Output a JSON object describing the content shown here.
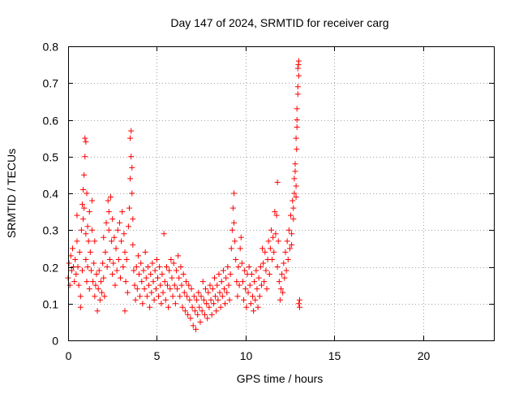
{
  "chart_data": {
    "type": "scatter",
    "title": "Day 147 of 2024, SRMTID for receiver carg",
    "xlabel": "GPS time / hours",
    "ylabel": "SRMTID / TECUs",
    "xlim": [
      0,
      24
    ],
    "ylim": [
      0,
      0.8
    ],
    "xticks": [
      0,
      5,
      10,
      15,
      20
    ],
    "yticks": [
      0,
      0.1,
      0.2,
      0.3,
      0.4,
      0.5,
      0.6,
      0.7,
      0.8
    ],
    "xtick_labels": [
      "0",
      "5",
      "10",
      "15",
      "20"
    ],
    "ytick_labels": [
      "0",
      "0.1",
      "0.2",
      "0.3",
      "0.4",
      "0.5",
      "0.6",
      "0.7",
      "0.8"
    ],
    "grid": true,
    "marker": "plus",
    "marker_color": "#ff0000",
    "series": [
      {
        "name": "SRMTID",
        "points": [
          [
            0.0,
            0.17
          ],
          [
            0.05,
            0.21
          ],
          [
            0.1,
            0.15
          ],
          [
            0.15,
            0.23
          ],
          [
            0.2,
            0.19
          ],
          [
            0.25,
            0.25
          ],
          [
            0.3,
            0.2
          ],
          [
            0.35,
            0.16
          ],
          [
            0.4,
            0.22
          ],
          [
            0.45,
            0.18
          ],
          [
            0.5,
            0.27
          ],
          [
            0.5,
            0.34
          ],
          [
            0.55,
            0.2
          ],
          [
            0.6,
            0.15
          ],
          [
            0.65,
            0.24
          ],
          [
            0.7,
            0.12
          ],
          [
            0.7,
            0.09
          ],
          [
            0.75,
            0.3
          ],
          [
            0.8,
            0.19
          ],
          [
            0.8,
            0.37
          ],
          [
            0.85,
            0.33
          ],
          [
            0.85,
            0.41
          ],
          [
            0.9,
            0.36
          ],
          [
            0.9,
            0.45
          ],
          [
            0.95,
            0.5
          ],
          [
            0.95,
            0.55
          ],
          [
            1.0,
            0.54
          ],
          [
            1.0,
            0.29
          ],
          [
            1.0,
            0.22
          ],
          [
            1.05,
            0.4
          ],
          [
            1.05,
            0.16
          ],
          [
            1.1,
            0.31
          ],
          [
            1.1,
            0.2
          ],
          [
            1.15,
            0.27
          ],
          [
            1.2,
            0.14
          ],
          [
            1.2,
            0.35
          ],
          [
            1.25,
            0.24
          ],
          [
            1.3,
            0.19
          ],
          [
            1.35,
            0.38
          ],
          [
            1.35,
            0.3
          ],
          [
            1.4,
            0.16
          ],
          [
            1.45,
            0.21
          ],
          [
            1.5,
            0.12
          ],
          [
            1.5,
            0.27
          ],
          [
            1.55,
            0.15
          ],
          [
            1.6,
            0.18
          ],
          [
            1.65,
            0.08
          ],
          [
            1.7,
            0.14
          ],
          [
            1.75,
            0.19
          ],
          [
            1.8,
            0.11
          ],
          [
            1.85,
            0.16
          ],
          [
            1.9,
            0.13
          ],
          [
            1.95,
            0.21
          ],
          [
            2.0,
            0.17
          ],
          [
            2.0,
            0.28
          ],
          [
            2.05,
            0.12
          ],
          [
            2.1,
            0.24
          ],
          [
            2.15,
            0.32
          ],
          [
            2.2,
            0.2
          ],
          [
            2.25,
            0.38
          ],
          [
            2.3,
            0.3
          ],
          [
            2.3,
            0.35
          ],
          [
            2.35,
            0.22
          ],
          [
            2.4,
            0.39
          ],
          [
            2.45,
            0.27
          ],
          [
            2.5,
            0.18
          ],
          [
            2.5,
            0.33
          ],
          [
            2.55,
            0.21
          ],
          [
            2.6,
            0.28
          ],
          [
            2.65,
            0.15
          ],
          [
            2.7,
            0.25
          ],
          [
            2.75,
            0.19
          ],
          [
            2.8,
            0.3
          ],
          [
            2.85,
            0.22
          ],
          [
            2.9,
            0.32
          ],
          [
            2.95,
            0.17
          ],
          [
            3.0,
            0.27
          ],
          [
            3.05,
            0.35
          ],
          [
            3.1,
            0.2
          ],
          [
            3.15,
            0.29
          ],
          [
            3.2,
            0.08
          ],
          [
            3.2,
            0.24
          ],
          [
            3.25,
            0.16
          ],
          [
            3.3,
            0.22
          ],
          [
            3.35,
            0.13
          ],
          [
            3.4,
            0.31
          ],
          [
            3.45,
            0.36
          ],
          [
            3.5,
            0.44
          ],
          [
            3.5,
            0.55
          ],
          [
            3.55,
            0.5
          ],
          [
            3.55,
            0.57
          ],
          [
            3.6,
            0.47
          ],
          [
            3.6,
            0.4
          ],
          [
            3.65,
            0.33
          ],
          [
            3.65,
            0.26
          ],
          [
            3.7,
            0.19
          ],
          [
            3.75,
            0.15
          ],
          [
            3.8,
            0.11
          ],
          [
            3.85,
            0.2
          ],
          [
            3.9,
            0.14
          ],
          [
            3.95,
            0.23
          ],
          [
            4.0,
            0.18
          ],
          [
            4.05,
            0.12
          ],
          [
            4.1,
            0.21
          ],
          [
            4.15,
            0.16
          ],
          [
            4.2,
            0.1
          ],
          [
            4.25,
            0.19
          ],
          [
            4.3,
            0.14
          ],
          [
            4.35,
            0.24
          ],
          [
            4.4,
            0.17
          ],
          [
            4.45,
            0.12
          ],
          [
            4.5,
            0.2
          ],
          [
            4.55,
            0.15
          ],
          [
            4.6,
            0.09
          ],
          [
            4.65,
            0.18
          ],
          [
            4.7,
            0.13
          ],
          [
            4.75,
            0.21
          ],
          [
            4.8,
            0.16
          ],
          [
            4.85,
            0.11
          ],
          [
            4.9,
            0.19
          ],
          [
            4.95,
            0.14
          ],
          [
            5.0,
            0.22
          ],
          [
            5.05,
            0.17
          ],
          [
            5.1,
            0.12
          ],
          [
            5.15,
            0.2
          ],
          [
            5.2,
            0.15
          ],
          [
            5.25,
            0.1
          ],
          [
            5.3,
            0.18
          ],
          [
            5.35,
            0.13
          ],
          [
            5.4,
            0.29
          ],
          [
            5.45,
            0.16
          ],
          [
            5.5,
            0.11
          ],
          [
            5.55,
            0.2
          ],
          [
            5.6,
            0.15
          ],
          [
            5.65,
            0.09
          ],
          [
            5.7,
            0.19
          ],
          [
            5.75,
            0.14
          ],
          [
            5.8,
            0.22
          ],
          [
            5.85,
            0.17
          ],
          [
            5.9,
            0.12
          ],
          [
            5.95,
            0.21
          ],
          [
            6.0,
            0.15
          ],
          [
            6.05,
            0.1
          ],
          [
            6.1,
            0.19
          ],
          [
            6.15,
            0.14
          ],
          [
            6.2,
            0.23
          ],
          [
            6.25,
            0.17
          ],
          [
            6.3,
            0.12
          ],
          [
            6.35,
            0.2
          ],
          [
            6.4,
            0.15
          ],
          [
            6.45,
            0.09
          ],
          [
            6.5,
            0.18
          ],
          [
            6.55,
            0.13
          ],
          [
            6.6,
            0.08
          ],
          [
            6.65,
            0.16
          ],
          [
            6.7,
            0.12
          ],
          [
            6.75,
            0.07
          ],
          [
            6.8,
            0.15
          ],
          [
            6.85,
            0.11
          ],
          [
            6.9,
            0.06
          ],
          [
            6.95,
            0.14
          ],
          [
            7.0,
            0.09
          ],
          [
            7.05,
            0.04
          ],
          [
            7.1,
            0.12
          ],
          [
            7.15,
            0.08
          ],
          [
            7.2,
            0.03
          ],
          [
            7.25,
            0.11
          ],
          [
            7.3,
            0.07
          ],
          [
            7.35,
            0.13
          ],
          [
            7.4,
            0.09
          ],
          [
            7.45,
            0.05
          ],
          [
            7.5,
            0.12
          ],
          [
            7.55,
            0.08
          ],
          [
            7.6,
            0.16
          ],
          [
            7.65,
            0.11
          ],
          [
            7.7,
            0.07
          ],
          [
            7.75,
            0.14
          ],
          [
            7.8,
            0.1
          ],
          [
            7.85,
            0.06
          ],
          [
            7.9,
            0.13
          ],
          [
            7.95,
            0.09
          ],
          [
            8.0,
            0.15
          ],
          [
            8.05,
            0.11
          ],
          [
            8.1,
            0.07
          ],
          [
            8.15,
            0.14
          ],
          [
            8.2,
            0.1
          ],
          [
            8.25,
            0.17
          ],
          [
            8.3,
            0.12
          ],
          [
            8.35,
            0.08
          ],
          [
            8.4,
            0.15
          ],
          [
            8.45,
            0.11
          ],
          [
            8.5,
            0.18
          ],
          [
            8.55,
            0.13
          ],
          [
            8.6,
            0.09
          ],
          [
            8.65,
            0.16
          ],
          [
            8.7,
            0.12
          ],
          [
            8.75,
            0.19
          ],
          [
            8.8,
            0.14
          ],
          [
            8.85,
            0.1
          ],
          [
            8.9,
            0.17
          ],
          [
            8.95,
            0.13
          ],
          [
            9.0,
            0.2
          ],
          [
            9.05,
            0.15
          ],
          [
            9.1,
            0.11
          ],
          [
            9.15,
            0.18
          ],
          [
            9.2,
            0.25
          ],
          [
            9.25,
            0.3
          ],
          [
            9.3,
            0.36
          ],
          [
            9.35,
            0.4
          ],
          [
            9.35,
            0.32
          ],
          [
            9.4,
            0.27
          ],
          [
            9.45,
            0.22
          ],
          [
            9.5,
            0.16
          ],
          [
            9.55,
            0.12
          ],
          [
            9.6,
            0.2
          ],
          [
            9.65,
            0.15
          ],
          [
            9.7,
            0.25
          ],
          [
            9.75,
            0.28
          ],
          [
            9.8,
            0.21
          ],
          [
            9.85,
            0.16
          ],
          [
            9.9,
            0.11
          ],
          [
            9.95,
            0.19
          ],
          [
            10.0,
            0.14
          ],
          [
            10.05,
            0.09
          ],
          [
            10.1,
            0.18
          ],
          [
            10.15,
            0.13
          ],
          [
            10.2,
            0.2
          ],
          [
            10.25,
            0.15
          ],
          [
            10.3,
            0.1
          ],
          [
            10.35,
            0.18
          ],
          [
            10.4,
            0.12
          ],
          [
            10.45,
            0.08
          ],
          [
            10.5,
            0.16
          ],
          [
            10.55,
            0.11
          ],
          [
            10.6,
            0.19
          ],
          [
            10.65,
            0.14
          ],
          [
            10.7,
            0.09
          ],
          [
            10.75,
            0.17
          ],
          [
            10.8,
            0.12
          ],
          [
            10.85,
            0.2
          ],
          [
            10.9,
            0.15
          ],
          [
            10.95,
            0.25
          ],
          [
            11.0,
            0.21
          ],
          [
            11.05,
            0.16
          ],
          [
            11.1,
            0.24
          ],
          [
            11.15,
            0.19
          ],
          [
            11.2,
            0.14
          ],
          [
            11.25,
            0.22
          ],
          [
            11.3,
            0.27
          ],
          [
            11.35,
            0.18
          ],
          [
            11.4,
            0.25
          ],
          [
            11.45,
            0.3
          ],
          [
            11.5,
            0.22
          ],
          [
            11.55,
            0.28
          ],
          [
            11.6,
            0.24
          ],
          [
            11.65,
            0.35
          ],
          [
            11.7,
            0.29
          ],
          [
            11.75,
            0.34
          ],
          [
            11.8,
            0.43
          ],
          [
            11.8,
            0.2
          ],
          [
            11.85,
            0.27
          ],
          [
            11.9,
            0.16
          ],
          [
            11.95,
            0.11
          ],
          [
            12.0,
            0.14
          ],
          [
            12.05,
            0.18
          ],
          [
            12.1,
            0.13
          ],
          [
            12.15,
            0.21
          ],
          [
            12.2,
            0.17
          ],
          [
            12.25,
            0.24
          ],
          [
            12.3,
            0.19
          ],
          [
            12.35,
            0.27
          ],
          [
            12.4,
            0.22
          ],
          [
            12.45,
            0.3
          ],
          [
            12.5,
            0.25
          ],
          [
            12.55,
            0.34
          ],
          [
            12.6,
            0.29
          ],
          [
            12.65,
            0.38
          ],
          [
            12.7,
            0.33
          ],
          [
            12.75,
            0.44
          ],
          [
            12.8,
            0.48
          ],
          [
            12.85,
            0.39
          ],
          [
            12.85,
            0.55
          ],
          [
            12.9,
            0.58
          ],
          [
            12.9,
            0.63
          ],
          [
            12.95,
            0.69
          ],
          [
            12.95,
            0.74
          ],
          [
            13.0,
            0.76
          ],
          [
            13.0,
            0.72
          ],
          [
            13.0,
            0.1
          ],
          [
            13.05,
            0.09
          ],
          [
            13.05,
            0.11
          ],
          [
            12.6,
            0.26
          ],
          [
            12.7,
            0.36
          ],
          [
            12.75,
            0.4
          ],
          [
            12.8,
            0.46
          ],
          [
            12.85,
            0.42
          ],
          [
            12.95,
            0.67
          ],
          [
            12.98,
            0.75
          ],
          [
            12.9,
            0.6
          ],
          [
            12.88,
            0.52
          ]
        ]
      }
    ]
  }
}
